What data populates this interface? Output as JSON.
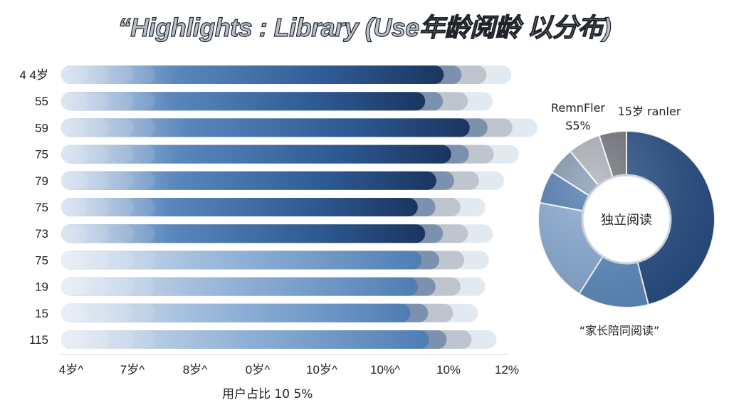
{
  "title": "“Highlights : Library (Use年龄阅龄 以分布)",
  "chart_data": [
    {
      "type": "bar",
      "orientation": "horizontal",
      "categories": [
        "4 4岁",
        "55",
        "59",
        "75",
        "79",
        "75",
        "73",
        "75",
        "19",
        "15",
        "115"
      ],
      "values": [
        10.3,
        9.8,
        11.0,
        10.5,
        10.1,
        9.6,
        9.8,
        9.7,
        9.6,
        9.4,
        9.9
      ],
      "xticks": [
        "4岁^",
        "7岁^",
        "8岁^",
        "0岁^",
        "10岁^",
        "10%^",
        "10%",
        "12%"
      ],
      "xlabel": "用户占比  10 5%",
      "colors": {
        "dark": "#1f3d6d",
        "mid": "#3e6ea5",
        "light": "#a6c1de",
        "pale": "#dde6ef",
        "gray": "#b6bcc5"
      }
    },
    {
      "type": "pie",
      "style": "donut",
      "center_label": "独立阅读",
      "labels": [
        {
          "text": "RemnFler",
          "text2": "S5%"
        },
        {
          "text": "15岁 ranler"
        },
        {
          "text": "“家长陪同阅读”"
        }
      ],
      "slices": [
        {
          "value": 46,
          "color": "#254c83"
        },
        {
          "value": 13,
          "color": "#5b8abf"
        },
        {
          "value": 19,
          "color": "#86a9d2"
        },
        {
          "value": 6,
          "color": "#4a78ae"
        },
        {
          "value": 5,
          "color": "#7f93ad"
        },
        {
          "value": 6,
          "color": "#a9adb4"
        },
        {
          "value": 5,
          "color": "#6d7077"
        }
      ]
    }
  ]
}
